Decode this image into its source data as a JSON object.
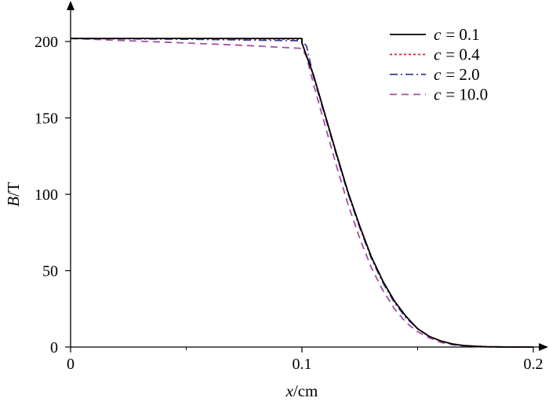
{
  "chart_data": {
    "type": "line",
    "xlabel": {
      "var": "x",
      "unit": "/cm"
    },
    "ylabel": {
      "var": "B",
      "unit": "/T"
    },
    "xlim": [
      0,
      0.2
    ],
    "ylim": [
      0,
      200
    ],
    "x_ticks": [
      0,
      0.1,
      0.2
    ],
    "x_tick_labels": [
      "0",
      "0.1",
      "0.2"
    ],
    "x_minor_ticks": [
      0.05,
      0.15
    ],
    "y_ticks": [
      0,
      50,
      100,
      150,
      200
    ],
    "y_tick_labels": [
      "0",
      "50",
      "100",
      "150",
      "200"
    ],
    "grid": false,
    "legend_position": "top-right",
    "series": [
      {
        "name": "c = 0.1",
        "legend_var": "c",
        "legend_value": "= 0.1",
        "color": "#000000",
        "dash": "solid",
        "x": [
          0,
          0.05,
          0.1,
          0.1,
          0.105,
          0.11,
          0.115,
          0.12,
          0.125,
          0.13,
          0.135,
          0.14,
          0.145,
          0.15,
          0.155,
          0.16,
          0.165,
          0.17,
          0.175,
          0.18,
          0.19,
          0.2
        ],
        "y": [
          202,
          202,
          202,
          199,
          178,
          152,
          126,
          101,
          79,
          59,
          43,
          30,
          20,
          12,
          7,
          4,
          2,
          1,
          0.5,
          0.2,
          0,
          0
        ]
      },
      {
        "name": "c = 0.4",
        "legend_var": "c",
        "legend_value": "= 0.4",
        "color": "#e8181c",
        "dash": "dot",
        "x": [
          0,
          0.05,
          0.1,
          0.1,
          0.105,
          0.11,
          0.115,
          0.12,
          0.125,
          0.13,
          0.135,
          0.14,
          0.145,
          0.15,
          0.155,
          0.16,
          0.165,
          0.17,
          0.175,
          0.18,
          0.19,
          0.2
        ],
        "y": [
          202,
          202,
          201.5,
          199,
          178,
          152,
          126,
          101,
          79,
          59,
          43,
          30,
          20,
          12,
          7,
          4,
          2,
          1,
          0.5,
          0.2,
          0,
          0
        ]
      },
      {
        "name": "c = 2.0",
        "legend_var": "c",
        "legend_value": "= 2.0",
        "color": "#3a3f9a",
        "dash": "dashdot",
        "x": [
          0,
          0.05,
          0.1,
          0.102,
          0.105,
          0.11,
          0.115,
          0.12,
          0.125,
          0.13,
          0.135,
          0.14,
          0.145,
          0.15,
          0.155,
          0.16,
          0.165,
          0.17,
          0.175,
          0.18,
          0.19,
          0.2
        ],
        "y": [
          202,
          201.5,
          200.5,
          197,
          177,
          151,
          125,
          100,
          78,
          58,
          42,
          29,
          19,
          12,
          7,
          4,
          2,
          1,
          0.5,
          0.2,
          0,
          0
        ]
      },
      {
        "name": "c = 10.0",
        "legend_var": "c",
        "legend_value": "= 10.0",
        "color": "#a64ca6",
        "dash": "dash",
        "x": [
          0,
          0.025,
          0.05,
          0.075,
          0.1,
          0.102,
          0.105,
          0.11,
          0.115,
          0.12,
          0.125,
          0.13,
          0.135,
          0.14,
          0.145,
          0.15,
          0.155,
          0.16,
          0.165,
          0.17,
          0.175,
          0.18,
          0.19,
          0.2
        ],
        "y": [
          202,
          200.5,
          199,
          197.5,
          195.5,
          190,
          172,
          145,
          118,
          93,
          71,
          52,
          37,
          25,
          16,
          10,
          6,
          3,
          1.5,
          0.7,
          0.3,
          0.1,
          0,
          0
        ]
      }
    ]
  }
}
